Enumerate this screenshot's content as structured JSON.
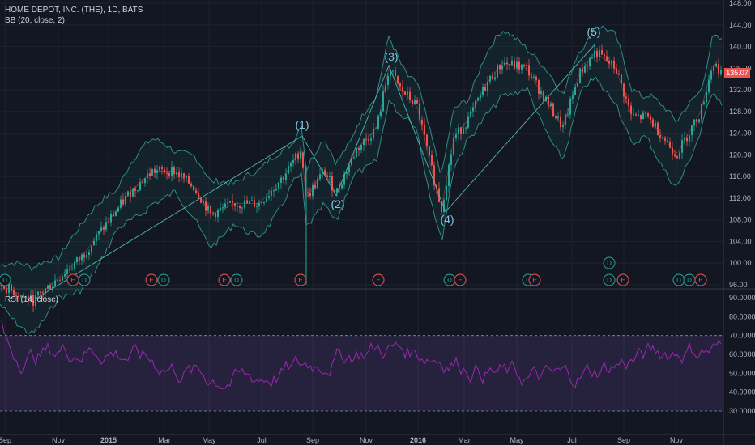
{
  "header": {
    "symbol_line": "HOME DEPOT, INC. (THE), 1D, BATS",
    "bb_line": "BB (20, close, 2)",
    "rsi_line": "RSI (14, close)"
  },
  "last_price": "135.07",
  "colors": {
    "background": "#131722",
    "up": "#26a69a",
    "down": "#ef5350",
    "rsi_line": "#9c27b0",
    "bb_band": "#2f8c84",
    "wave_labels": "#7fc7e0"
  },
  "price_axis": [
    "148.00",
    "144.00",
    "140.00",
    "136.00",
    "132.00",
    "128.00",
    "124.00",
    "120.00",
    "116.00",
    "112.00",
    "108.00",
    "104.00",
    "100.00",
    "96.00"
  ],
  "rsi_axis": [
    "90.0000",
    "80.0000",
    "70.0000",
    "60.0000",
    "50.0000",
    "40.0000",
    "30.0000"
  ],
  "time_axis": [
    "Sep",
    "Nov",
    "2015",
    "Mar",
    "May",
    "Jul",
    "Sep",
    "Nov",
    "2016",
    "Mar",
    "May",
    "Jul",
    "Sep",
    "Nov"
  ],
  "wave_labels": [
    "(1)",
    "(2)",
    "(3)",
    "(4)",
    "(5)"
  ],
  "events": [
    "D",
    "E",
    "D",
    "E",
    "D",
    "E",
    "D",
    "E",
    "E",
    "D",
    "E",
    "D",
    "E",
    "D",
    "E",
    "D",
    "D",
    "E",
    "D"
  ]
}
